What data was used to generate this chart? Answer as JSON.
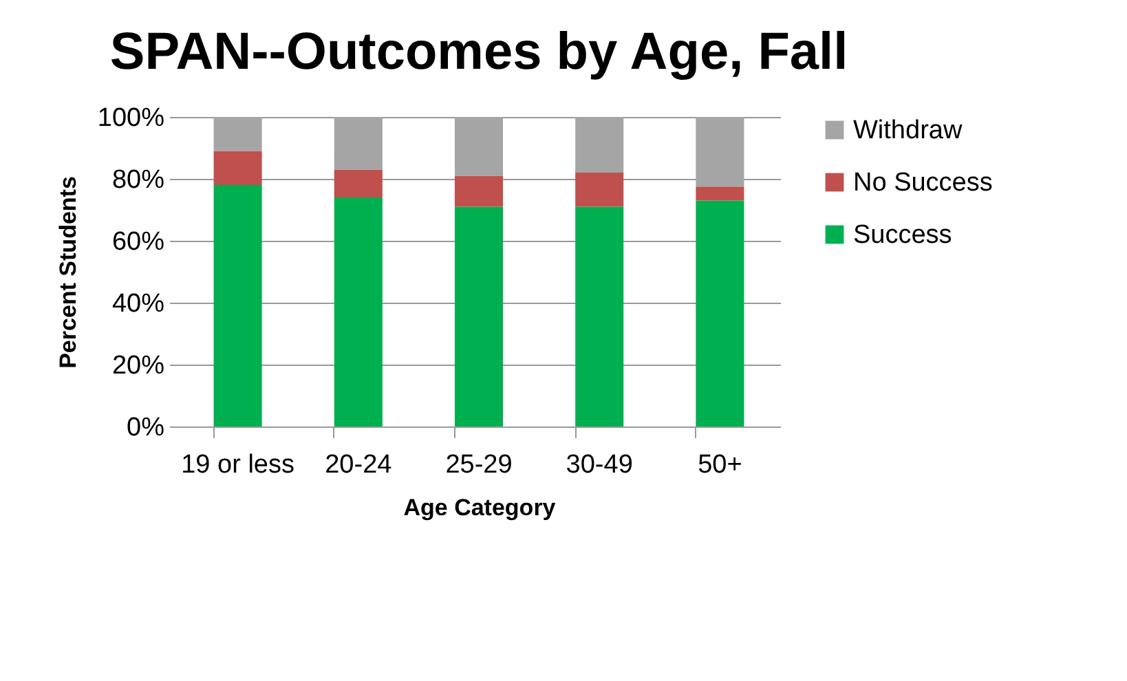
{
  "chart_data": {
    "type": "bar",
    "stacked": true,
    "title": "SPAN--Outcomes by Age, Fall",
    "xlabel": "Age Category",
    "ylabel": "Percent Students",
    "categories": [
      "19 or less",
      "20-24",
      "25-29",
      "30-49",
      "50+"
    ],
    "series": [
      {
        "name": "Success",
        "color": "#00b050",
        "values": [
          78,
          74,
          71,
          71,
          73
        ]
      },
      {
        "name": "No Success",
        "color": "#c0504d",
        "values": [
          11,
          9,
          10,
          11,
          4.5
        ]
      },
      {
        "name": "Withdraw",
        "color": "#a5a5a5",
        "values": [
          11,
          17,
          19,
          18,
          22.5
        ]
      }
    ],
    "ylim": [
      0,
      100
    ],
    "yticks": [
      {
        "value": 0,
        "label": "0%"
      },
      {
        "value": 20,
        "label": "20%"
      },
      {
        "value": 40,
        "label": "40%"
      },
      {
        "value": 60,
        "label": "60%"
      },
      {
        "value": 80,
        "label": "80%"
      },
      {
        "value": 100,
        "label": "100%"
      }
    ],
    "grid": "y",
    "legend": "right"
  }
}
